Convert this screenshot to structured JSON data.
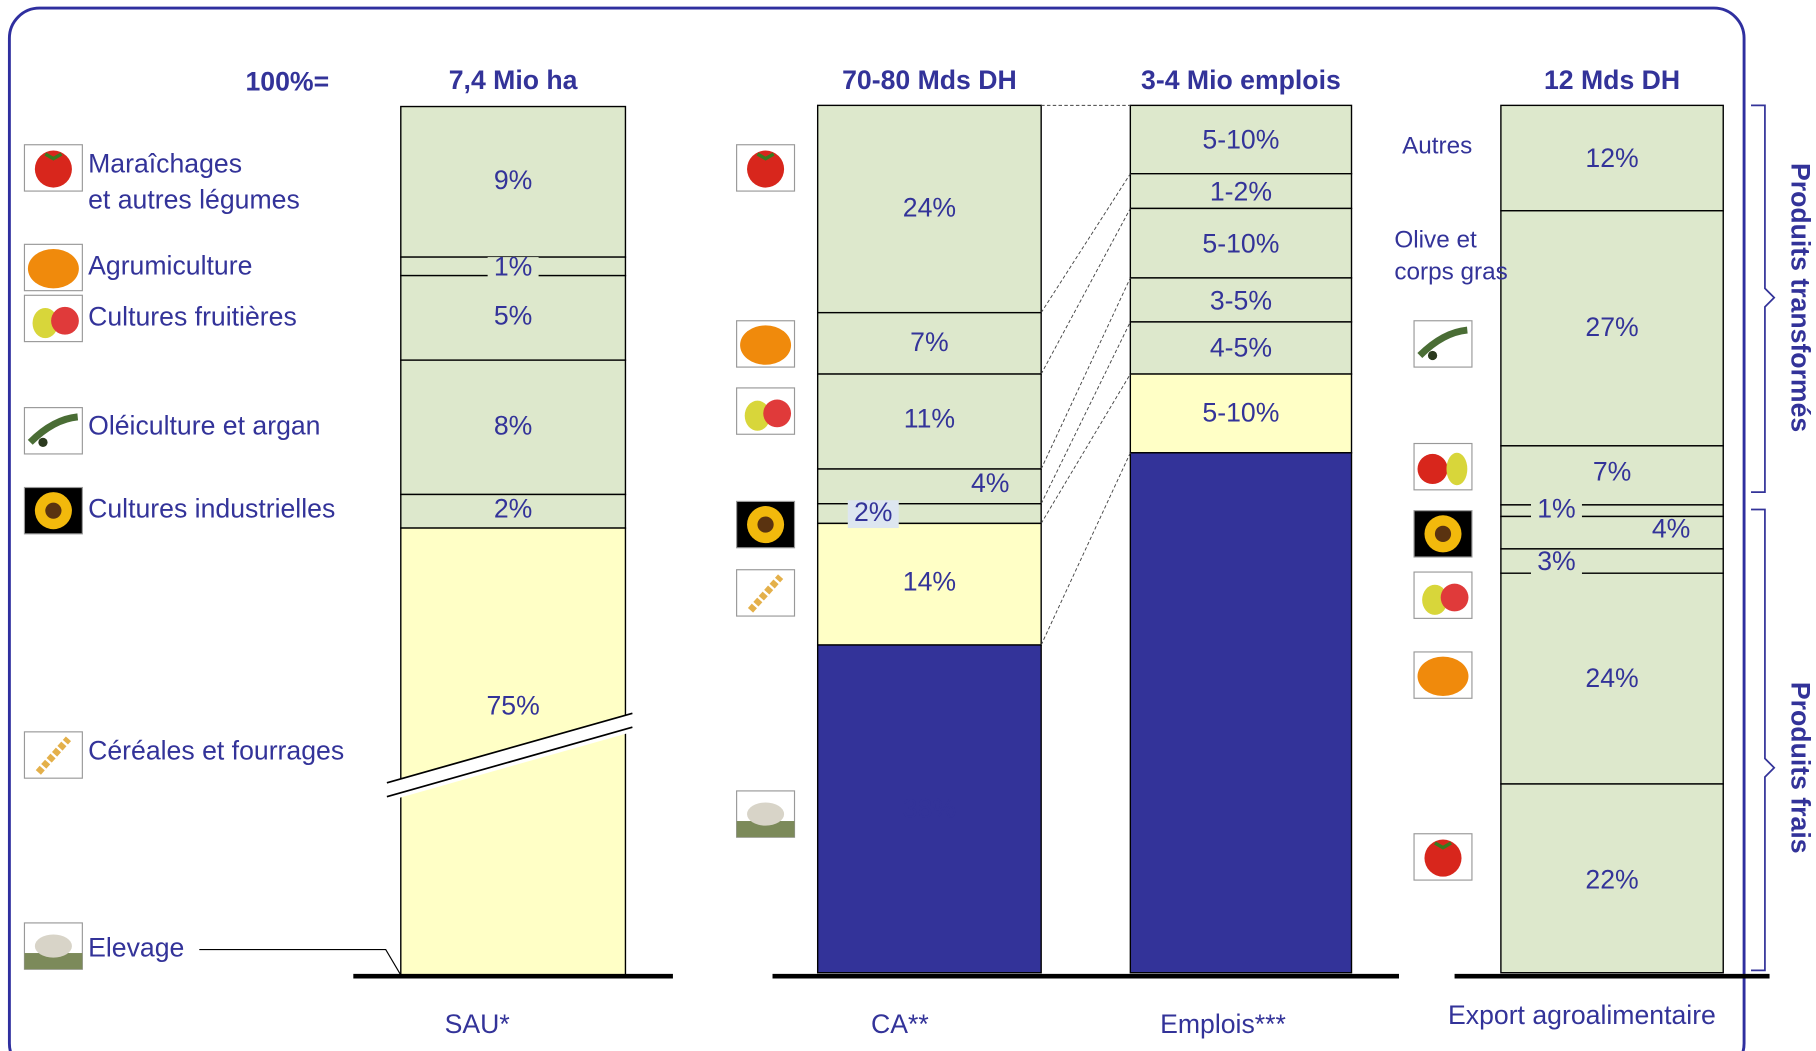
{
  "header_label": "100%=",
  "columns": [
    {
      "total": "7,4 Mio ha",
      "footer": "SAU*",
      "segments": [
        "9%",
        "1%",
        "5%",
        "8%",
        "2%",
        "75%"
      ]
    },
    {
      "total": "70-80 Mds DH",
      "footer": "CA**",
      "segments": [
        "24%",
        "7%",
        "11%",
        "4%",
        "2%",
        "14%",
        "38%"
      ]
    },
    {
      "total": "3-4 Mio emplois",
      "footer": "Emplois***",
      "segments": [
        "5-10%",
        "1-2%",
        "5-10%",
        "3-5%",
        "4-5%",
        "5-10%"
      ]
    },
    {
      "total": "12 Mds DH",
      "footer": "Export agroalimentaire",
      "segments": [
        "12%",
        "27%",
        "7%",
        "1%",
        "4%",
        "3%",
        "24%",
        "22%"
      ]
    }
  ],
  "legend": [
    {
      "lines": [
        "Maraîchages",
        "et autres légumes"
      ]
    },
    {
      "lines": [
        "Agrumiculture"
      ]
    },
    {
      "lines": [
        "Cultures fruitières"
      ]
    },
    {
      "lines": [
        "Oléiculture et argan"
      ]
    },
    {
      "lines": [
        "Cultures industrielles"
      ]
    },
    {
      "lines": [
        "Céréales et fourrages"
      ]
    },
    {
      "lines": [
        "Elevage"
      ]
    }
  ],
  "export_labels": [
    {
      "lines": [
        "Autres"
      ]
    },
    {
      "lines": [
        "Olive et",
        "corps gras"
      ]
    }
  ],
  "brackets": [
    "Produits transformés",
    "Produits frais"
  ]
}
